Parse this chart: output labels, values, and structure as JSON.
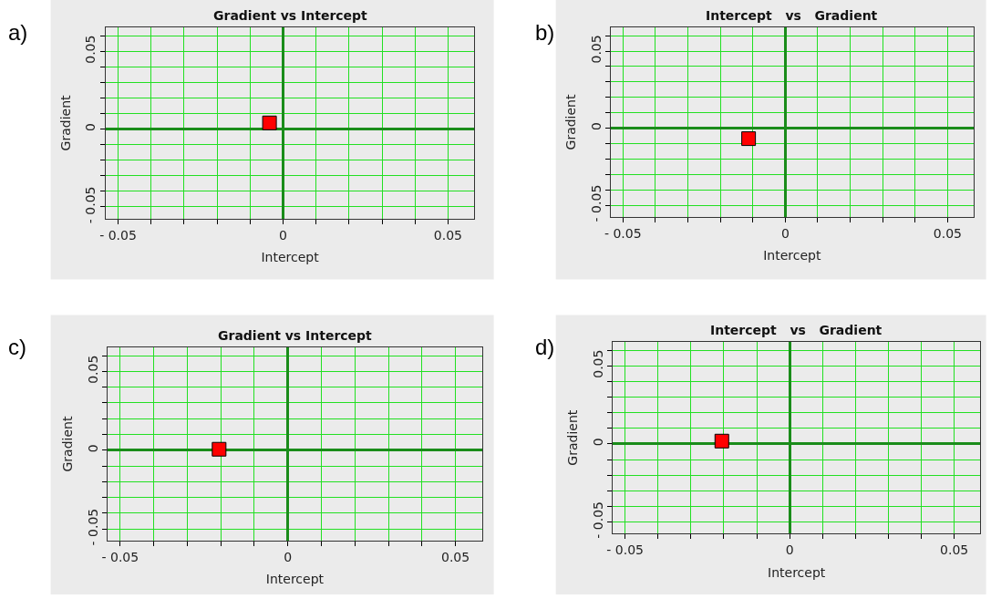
{
  "chart_data": [
    {
      "type": "scatter",
      "title": "Gradient vs Intercept",
      "xlabel": "Intercept",
      "ylabel": "Gradient",
      "annotations": [
        "a)"
      ],
      "x": [
        -0.0041
      ],
      "series": [
        {
          "color": "#ff0000",
          "values": [
            0.004
          ]
        }
      ],
      "marker": "square",
      "grid": true,
      "xlim": [
        -0.0537,
        0.0579
      ],
      "ylim": [
        -0.0576,
        0.0654
      ],
      "xticks": [
        -0.05,
        {
          "value": -0.04,
          "label": null
        },
        {
          "value": -0.03,
          "label": null
        },
        {
          "value": -0.02,
          "label": null
        },
        {
          "value": -0.01,
          "label": null
        },
        0,
        {
          "value": 0.01,
          "label": null
        },
        {
          "value": 0.02,
          "label": null
        },
        {
          "value": 0.03,
          "label": null
        },
        {
          "value": 0.04,
          "label": null
        },
        0.05
      ],
      "yticks": [
        -0.05,
        {
          "value": -0.04,
          "label": null
        },
        {
          "value": -0.03,
          "label": null
        },
        {
          "value": -0.02,
          "label": null
        },
        {
          "value": -0.01,
          "label": null
        },
        0,
        {
          "value": 0.01,
          "label": null
        },
        {
          "value": 0.02,
          "label": null
        },
        {
          "value": 0.03,
          "label": null
        },
        {
          "value": 0.04,
          "label": null
        },
        0.05,
        {
          "value": 0.06,
          "label": null
        }
      ]
    },
    {
      "type": "scatter",
      "title": "Intercept   vs   Gradient",
      "xlabel": "Intercept",
      "ylabel": "Gradient",
      "annotations": [
        "b)"
      ],
      "x": [
        -0.0113
      ],
      "series": [
        {
          "color": "#ff0000",
          "values": [
            -0.0068
          ]
        }
      ],
      "marker": "square",
      "grid": true,
      "xlim": [
        -0.0537,
        0.0579
      ],
      "ylim": [
        -0.0576,
        0.0654
      ],
      "xticks": [
        -0.05,
        {
          "value": -0.04,
          "label": null
        },
        {
          "value": -0.03,
          "label": null
        },
        {
          "value": -0.02,
          "label": null
        },
        {
          "value": -0.01,
          "label": null
        },
        0,
        {
          "value": 0.01,
          "label": null
        },
        {
          "value": 0.02,
          "label": null
        },
        {
          "value": 0.03,
          "label": null
        },
        {
          "value": 0.04,
          "label": null
        },
        0.05
      ],
      "yticks": [
        -0.05,
        {
          "value": -0.04,
          "label": null
        },
        {
          "value": -0.03,
          "label": null
        },
        {
          "value": -0.02,
          "label": null
        },
        {
          "value": -0.01,
          "label": null
        },
        0,
        {
          "value": 0.01,
          "label": null
        },
        {
          "value": 0.02,
          "label": null
        },
        {
          "value": 0.03,
          "label": null
        },
        {
          "value": 0.04,
          "label": null
        },
        0.05,
        {
          "value": 0.06,
          "label": null
        }
      ]
    },
    {
      "type": "scatter",
      "title": "Gradient vs Intercept",
      "xlabel": "Intercept",
      "ylabel": "Gradient",
      "annotations": [
        "c)"
      ],
      "x": [
        -0.0205
      ],
      "series": [
        {
          "color": "#ff0000",
          "values": [
            0.0006
          ]
        }
      ],
      "marker": "square",
      "grid": true,
      "xlim": [
        -0.0537,
        0.0579
      ],
      "ylim": [
        -0.0576,
        0.0654
      ],
      "xticks": [
        -0.05,
        {
          "value": -0.04,
          "label": null
        },
        {
          "value": -0.03,
          "label": null
        },
        {
          "value": -0.02,
          "label": null
        },
        {
          "value": -0.01,
          "label": null
        },
        0,
        {
          "value": 0.01,
          "label": null
        },
        {
          "value": 0.02,
          "label": null
        },
        {
          "value": 0.03,
          "label": null
        },
        {
          "value": 0.04,
          "label": null
        },
        0.05
      ],
      "yticks": [
        -0.05,
        {
          "value": -0.04,
          "label": null
        },
        {
          "value": -0.03,
          "label": null
        },
        {
          "value": -0.02,
          "label": null
        },
        {
          "value": -0.01,
          "label": null
        },
        0,
        {
          "value": 0.01,
          "label": null
        },
        {
          "value": 0.02,
          "label": null
        },
        {
          "value": 0.03,
          "label": null
        },
        {
          "value": 0.04,
          "label": null
        },
        0.05,
        {
          "value": 0.06,
          "label": null
        }
      ]
    },
    {
      "type": "scatter",
      "title": "Intercept   vs   Gradient",
      "xlabel": "Intercept",
      "ylabel": "Gradient",
      "annotations": [
        "d)"
      ],
      "x": [
        -0.0206
      ],
      "series": [
        {
          "color": "#ff0000",
          "values": [
            0.0018
          ]
        }
      ],
      "marker": "square",
      "grid": true,
      "xlim": [
        -0.0537,
        0.0579
      ],
      "ylim": [
        -0.0576,
        0.0654
      ],
      "xticks": [
        -0.05,
        {
          "value": -0.04,
          "label": null
        },
        {
          "value": -0.03,
          "label": null
        },
        {
          "value": -0.02,
          "label": null
        },
        {
          "value": -0.01,
          "label": null
        },
        0,
        {
          "value": 0.01,
          "label": null
        },
        {
          "value": 0.02,
          "label": null
        },
        {
          "value": 0.03,
          "label": null
        },
        {
          "value": 0.04,
          "label": null
        },
        0.05
      ],
      "yticks": [
        -0.05,
        {
          "value": -0.04,
          "label": null
        },
        {
          "value": -0.03,
          "label": null
        },
        {
          "value": -0.02,
          "label": null
        },
        {
          "value": -0.01,
          "label": null
        },
        0,
        {
          "value": 0.01,
          "label": null
        },
        {
          "value": 0.02,
          "label": null
        },
        {
          "value": 0.03,
          "label": null
        },
        {
          "value": 0.04,
          "label": null
        },
        0.05,
        {
          "value": 0.06,
          "label": null
        }
      ]
    }
  ]
}
